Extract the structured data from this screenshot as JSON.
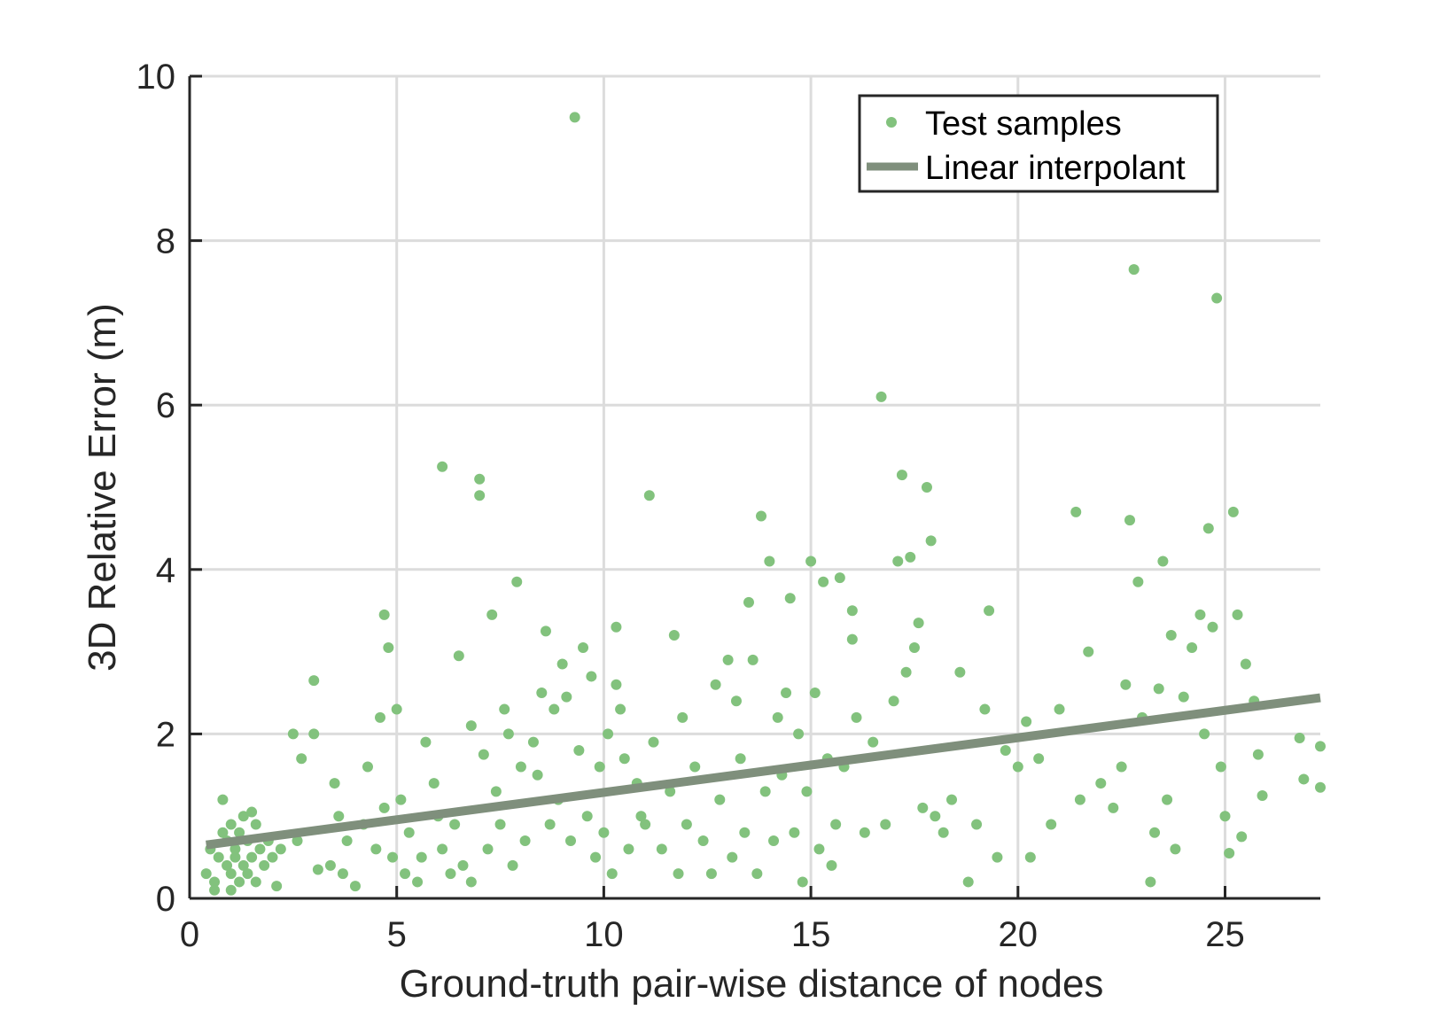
{
  "colors": {
    "points": "#82c27d",
    "fit_line": "#7f8f7c",
    "grid": "#dcdcdc",
    "axis": "#262626",
    "legend_border": "#262626"
  },
  "chart_data": {
    "type": "scatter",
    "xlabel": "Ground-truth pair-wise distance of nodes",
    "ylabel": "3D Relative Error (m)",
    "xlim": [
      0,
      27.3
    ],
    "ylim": [
      0,
      10
    ],
    "x_ticks": [
      0,
      5,
      10,
      15,
      20,
      25
    ],
    "y_ticks": [
      0,
      2,
      4,
      6,
      8,
      10
    ],
    "grid": true,
    "legend_position": "top-right",
    "series": [
      {
        "name": "Test samples",
        "kind": "scatter",
        "color": "#82c27d",
        "points": [
          [
            0.4,
            0.3
          ],
          [
            0.5,
            0.6
          ],
          [
            0.6,
            0.2
          ],
          [
            0.6,
            0.1
          ],
          [
            0.7,
            0.5
          ],
          [
            0.8,
            0.8
          ],
          [
            0.8,
            1.2
          ],
          [
            0.9,
            0.4
          ],
          [
            0.9,
            0.7
          ],
          [
            1.0,
            0.3
          ],
          [
            1.0,
            0.9
          ],
          [
            1.0,
            0.1
          ],
          [
            1.1,
            0.6
          ],
          [
            1.1,
            0.5
          ],
          [
            1.2,
            0.8
          ],
          [
            1.2,
            0.2
          ],
          [
            1.3,
            1.0
          ],
          [
            1.3,
            0.4
          ],
          [
            1.4,
            0.7
          ],
          [
            1.4,
            0.3
          ],
          [
            1.5,
            1.05
          ],
          [
            1.5,
            0.5
          ],
          [
            1.6,
            0.9
          ],
          [
            1.6,
            0.2
          ],
          [
            1.7,
            0.6
          ],
          [
            1.8,
            0.4
          ],
          [
            1.9,
            0.7
          ],
          [
            2.0,
            0.5
          ],
          [
            2.1,
            0.15
          ],
          [
            2.2,
            0.6
          ],
          [
            2.5,
            2.0
          ],
          [
            2.6,
            0.7
          ],
          [
            2.7,
            1.7
          ],
          [
            3.0,
            2.65
          ],
          [
            3.0,
            2.0
          ],
          [
            3.1,
            0.35
          ],
          [
            3.4,
            0.4
          ],
          [
            3.5,
            1.4
          ],
          [
            3.6,
            1.0
          ],
          [
            3.7,
            0.3
          ],
          [
            3.8,
            0.7
          ],
          [
            4.0,
            0.15
          ],
          [
            4.2,
            0.9
          ],
          [
            4.3,
            1.6
          ],
          [
            4.5,
            0.6
          ],
          [
            4.6,
            2.2
          ],
          [
            4.7,
            3.45
          ],
          [
            4.7,
            1.1
          ],
          [
            4.8,
            3.05
          ],
          [
            4.9,
            0.5
          ],
          [
            5.0,
            2.3
          ],
          [
            5.1,
            1.2
          ],
          [
            5.2,
            0.3
          ],
          [
            5.3,
            0.8
          ],
          [
            5.5,
            0.2
          ],
          [
            5.6,
            0.5
          ],
          [
            5.7,
            1.9
          ],
          [
            5.9,
            1.4
          ],
          [
            6.0,
            1.0
          ],
          [
            6.1,
            5.25
          ],
          [
            6.1,
            0.6
          ],
          [
            6.3,
            0.3
          ],
          [
            6.4,
            0.9
          ],
          [
            6.5,
            2.95
          ],
          [
            6.6,
            0.4
          ],
          [
            6.8,
            2.1
          ],
          [
            6.8,
            0.2
          ],
          [
            7.0,
            5.1
          ],
          [
            7.0,
            4.9
          ],
          [
            7.1,
            1.75
          ],
          [
            7.2,
            0.6
          ],
          [
            7.3,
            3.45
          ],
          [
            7.4,
            1.3
          ],
          [
            7.5,
            0.9
          ],
          [
            7.6,
            2.3
          ],
          [
            7.7,
            2.0
          ],
          [
            7.8,
            0.4
          ],
          [
            7.9,
            3.85
          ],
          [
            8.0,
            1.6
          ],
          [
            8.1,
            0.7
          ],
          [
            8.3,
            1.9
          ],
          [
            8.4,
            1.5
          ],
          [
            8.5,
            2.5
          ],
          [
            8.6,
            3.25
          ],
          [
            8.7,
            0.9
          ],
          [
            8.8,
            2.3
          ],
          [
            8.9,
            1.2
          ],
          [
            9.0,
            2.85
          ],
          [
            9.1,
            2.45
          ],
          [
            9.2,
            0.7
          ],
          [
            9.3,
            9.5
          ],
          [
            9.4,
            1.8
          ],
          [
            9.5,
            3.05
          ],
          [
            9.6,
            1.0
          ],
          [
            9.7,
            2.7
          ],
          [
            9.8,
            0.5
          ],
          [
            9.9,
            1.6
          ],
          [
            10.0,
            0.8
          ],
          [
            10.1,
            2.0
          ],
          [
            10.2,
            0.3
          ],
          [
            10.3,
            2.6
          ],
          [
            10.3,
            3.3
          ],
          [
            10.4,
            2.3
          ],
          [
            10.5,
            1.7
          ],
          [
            10.6,
            0.6
          ],
          [
            10.8,
            1.4
          ],
          [
            10.9,
            1.0
          ],
          [
            11.0,
            0.9
          ],
          [
            11.1,
            4.9
          ],
          [
            11.2,
            1.9
          ],
          [
            11.4,
            0.6
          ],
          [
            11.6,
            1.3
          ],
          [
            11.7,
            3.2
          ],
          [
            11.8,
            0.3
          ],
          [
            11.9,
            2.2
          ],
          [
            12.0,
            0.9
          ],
          [
            12.2,
            1.6
          ],
          [
            12.4,
            0.7
          ],
          [
            12.6,
            0.3
          ],
          [
            12.7,
            2.6
          ],
          [
            12.8,
            1.2
          ],
          [
            13.0,
            2.9
          ],
          [
            13.1,
            0.5
          ],
          [
            13.2,
            2.4
          ],
          [
            13.3,
            1.7
          ],
          [
            13.4,
            0.8
          ],
          [
            13.5,
            3.6
          ],
          [
            13.6,
            2.9
          ],
          [
            13.7,
            0.3
          ],
          [
            13.8,
            4.65
          ],
          [
            13.9,
            1.3
          ],
          [
            14.0,
            4.1
          ],
          [
            14.1,
            0.7
          ],
          [
            14.2,
            2.2
          ],
          [
            14.3,
            1.5
          ],
          [
            14.4,
            2.5
          ],
          [
            14.5,
            3.65
          ],
          [
            14.6,
            0.8
          ],
          [
            14.7,
            2.0
          ],
          [
            14.8,
            0.2
          ],
          [
            14.9,
            1.3
          ],
          [
            15.0,
            4.1
          ],
          [
            15.1,
            2.5
          ],
          [
            15.2,
            0.6
          ],
          [
            15.3,
            3.85
          ],
          [
            15.4,
            1.7
          ],
          [
            15.5,
            0.4
          ],
          [
            15.6,
            0.9
          ],
          [
            15.7,
            3.9
          ],
          [
            15.8,
            1.6
          ],
          [
            16.0,
            3.5
          ],
          [
            16.0,
            3.15
          ],
          [
            16.1,
            2.2
          ],
          [
            16.3,
            0.8
          ],
          [
            16.5,
            1.9
          ],
          [
            16.7,
            6.1
          ],
          [
            16.8,
            0.9
          ],
          [
            17.0,
            2.4
          ],
          [
            17.1,
            4.1
          ],
          [
            17.2,
            5.15
          ],
          [
            17.3,
            2.75
          ],
          [
            17.4,
            4.15
          ],
          [
            17.5,
            3.05
          ],
          [
            17.6,
            3.35
          ],
          [
            17.7,
            1.1
          ],
          [
            17.8,
            5.0
          ],
          [
            17.9,
            4.35
          ],
          [
            18.0,
            1.0
          ],
          [
            18.2,
            0.8
          ],
          [
            18.4,
            1.2
          ],
          [
            18.6,
            2.75
          ],
          [
            18.8,
            0.2
          ],
          [
            19.0,
            0.9
          ],
          [
            19.2,
            2.3
          ],
          [
            19.3,
            3.5
          ],
          [
            19.5,
            0.5
          ],
          [
            19.7,
            1.8
          ],
          [
            20.0,
            1.6
          ],
          [
            20.2,
            2.15
          ],
          [
            20.3,
            0.5
          ],
          [
            20.5,
            1.7
          ],
          [
            20.8,
            0.9
          ],
          [
            21.0,
            2.3
          ],
          [
            21.4,
            4.7
          ],
          [
            21.5,
            1.2
          ],
          [
            21.7,
            3.0
          ],
          [
            22.0,
            1.4
          ],
          [
            22.3,
            1.1
          ],
          [
            22.5,
            1.6
          ],
          [
            22.6,
            2.6
          ],
          [
            22.7,
            4.6
          ],
          [
            22.8,
            7.65
          ],
          [
            22.9,
            3.85
          ],
          [
            23.0,
            2.2
          ],
          [
            23.2,
            0.2
          ],
          [
            23.3,
            0.8
          ],
          [
            23.4,
            2.55
          ],
          [
            23.5,
            4.1
          ],
          [
            23.6,
            1.2
          ],
          [
            23.7,
            3.2
          ],
          [
            23.8,
            0.6
          ],
          [
            24.0,
            2.45
          ],
          [
            24.2,
            3.05
          ],
          [
            24.4,
            3.45
          ],
          [
            24.5,
            2.0
          ],
          [
            24.6,
            4.5
          ],
          [
            24.7,
            3.3
          ],
          [
            24.8,
            7.3
          ],
          [
            24.9,
            1.6
          ],
          [
            25.0,
            1.0
          ],
          [
            25.1,
            0.55
          ],
          [
            25.2,
            4.7
          ],
          [
            25.3,
            3.45
          ],
          [
            25.4,
            0.75
          ],
          [
            25.5,
            2.85
          ],
          [
            25.7,
            2.4
          ],
          [
            25.8,
            1.75
          ],
          [
            25.9,
            1.25
          ],
          [
            26.8,
            1.95
          ],
          [
            26.9,
            1.45
          ],
          [
            27.3,
            1.85
          ],
          [
            27.3,
            1.35
          ]
        ]
      },
      {
        "name": "Linear interpolant",
        "kind": "line",
        "color": "#7f8f7c",
        "x": [
          0.4,
          27.3
        ],
        "y": [
          0.65,
          2.44
        ]
      }
    ]
  }
}
